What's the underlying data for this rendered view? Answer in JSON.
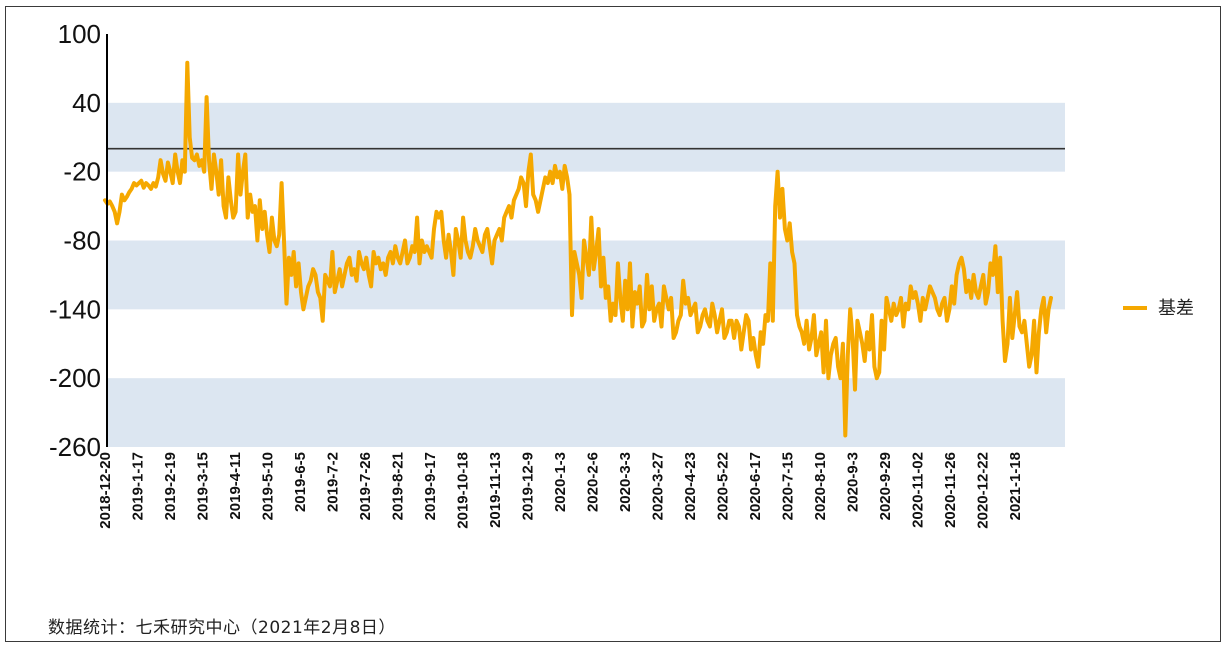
{
  "chart_data": {
    "type": "line",
    "title": "",
    "xlabel": "",
    "ylabel": "",
    "ylim": [
      -260,
      100
    ],
    "yticks": [
      100,
      40,
      -20,
      -80,
      -140,
      -200,
      -260
    ],
    "bands": [
      [
        -20,
        40
      ],
      [
        -140,
        -80
      ],
      [
        -260,
        -200
      ]
    ],
    "reference_line": 0,
    "xticks": [
      "2018-12-20",
      "2019-1-17",
      "2019-2-19",
      "2019-3-15",
      "2019-4-11",
      "2019-5-10",
      "2019-6-5",
      "2019-7-2",
      "2019-7-26",
      "2019-8-21",
      "2019-9-17",
      "2019-10-18",
      "2019-11-13",
      "2019-12-9",
      "2020-1-3",
      "2020-2-6",
      "2020-3-3",
      "2020-3-27",
      "2020-4-23",
      "2020-5-22",
      "2020-6-17",
      "2020-7-15",
      "2020-8-10",
      "2020-9-3",
      "2020-9-29",
      "2020-11-02",
      "2020-11-26",
      "2020-12-22",
      "2021-1-18"
    ],
    "legend_position": "right",
    "colors": {
      "series": "#F5A800",
      "band": "#DCE6F1",
      "axis": "#000000",
      "reference": "#333333"
    },
    "series": [
      {
        "name": "基差",
        "values": [
          -45,
          -48,
          -46,
          -50,
          -55,
          -65,
          -55,
          -40,
          -45,
          -42,
          -38,
          -35,
          -30,
          -32,
          -30,
          -28,
          -34,
          -30,
          -32,
          -35,
          -30,
          -33,
          -25,
          -10,
          -22,
          -28,
          -12,
          -20,
          -30,
          -5,
          -20,
          -30,
          -10,
          -20,
          75,
          10,
          -8,
          -10,
          -5,
          -15,
          -10,
          -20,
          45,
          -10,
          -35,
          -5,
          -20,
          -40,
          -10,
          -50,
          -60,
          -25,
          -45,
          -60,
          -55,
          -5,
          -40,
          -20,
          -5,
          -60,
          -40,
          -55,
          -50,
          -80,
          -45,
          -70,
          -55,
          -75,
          -90,
          -60,
          -80,
          -85,
          -75,
          -30,
          -80,
          -135,
          -95,
          -110,
          -90,
          -120,
          -100,
          -125,
          -140,
          -130,
          -120,
          -115,
          -105,
          -110,
          -125,
          -130,
          -150,
          -110,
          -115,
          -120,
          -90,
          -125,
          -115,
          -105,
          -120,
          -110,
          -100,
          -95,
          -110,
          -105,
          -115,
          -90,
          -100,
          -105,
          -95,
          -110,
          -120,
          -90,
          -100,
          -95,
          -105,
          -100,
          -110,
          -95,
          -90,
          -100,
          -85,
          -95,
          -100,
          -90,
          -80,
          -100,
          -95,
          -85,
          -90,
          -60,
          -100,
          -80,
          -90,
          -85,
          -90,
          -95,
          -70,
          -55,
          -60,
          -55,
          -80,
          -95,
          -75,
          -90,
          -110,
          -70,
          -80,
          -95,
          -60,
          -80,
          -90,
          -95,
          -85,
          -70,
          -80,
          -85,
          -90,
          -75,
          -70,
          -85,
          -100,
          -80,
          -75,
          -70,
          -80,
          -60,
          -55,
          -50,
          -60,
          -45,
          -40,
          -35,
          -25,
          -30,
          -50,
          -20,
          -5,
          -40,
          -45,
          -55,
          -45,
          -35,
          -25,
          -30,
          -20,
          -30,
          -15,
          -25,
          -20,
          -35,
          -15,
          -25,
          -40,
          -145,
          -90,
          -100,
          -110,
          -130,
          -80,
          -95,
          -110,
          -60,
          -105,
          -90,
          -70,
          -120,
          -95,
          -130,
          -120,
          -150,
          -135,
          -145,
          -100,
          -130,
          -150,
          -115,
          -140,
          -100,
          -155,
          -125,
          -135,
          -120,
          -155,
          -150,
          -110,
          -140,
          -120,
          -150,
          -140,
          -135,
          -155,
          -120,
          -130,
          -140,
          -130,
          -165,
          -160,
          -150,
          -145,
          -115,
          -135,
          -130,
          -145,
          -140,
          -135,
          -160,
          -155,
          -145,
          -140,
          -150,
          -155,
          -135,
          -145,
          -160,
          -150,
          -140,
          -165,
          -160,
          -150,
          -150,
          -165,
          -150,
          -155,
          -175,
          -160,
          -145,
          -150,
          -175,
          -165,
          -180,
          -190,
          -160,
          -170,
          -145,
          -150,
          -100,
          -150,
          -50,
          -20,
          -60,
          -35,
          -70,
          -80,
          -65,
          -90,
          -100,
          -145,
          -155,
          -160,
          -170,
          -150,
          -175,
          -165,
          -145,
          -180,
          -170,
          -160,
          -195,
          -150,
          -200,
          -180,
          -170,
          -165,
          -190,
          -200,
          -170,
          -250,
          -180,
          -140,
          -165,
          -210,
          -150,
          -160,
          -170,
          -185,
          -160,
          -175,
          -145,
          -190,
          -200,
          -195,
          -150,
          -175,
          -130,
          -140,
          -150,
          -135,
          -145,
          -140,
          -130,
          -155,
          -135,
          -140,
          -120,
          -130,
          -125,
          -135,
          -150,
          -130,
          -140,
          -130,
          -120,
          -125,
          -130,
          -140,
          -145,
          -135,
          -130,
          -150,
          -140,
          -120,
          -135,
          -110,
          -100,
          -95,
          -105,
          -125,
          -115,
          -130,
          -110,
          -125,
          -130,
          -120,
          -110,
          -135,
          -125,
          -100,
          -110,
          -85,
          -125,
          -95,
          -150,
          -185,
          -170,
          -130,
          -165,
          -145,
          -125,
          -155,
          -160,
          -150,
          -170,
          -190,
          -180,
          -150,
          -195,
          -160,
          -140,
          -130,
          -160,
          -140,
          -130
        ]
      }
    ]
  },
  "footer": {
    "source": "数据统计：七禾研究中心（2021年2月8日）"
  }
}
